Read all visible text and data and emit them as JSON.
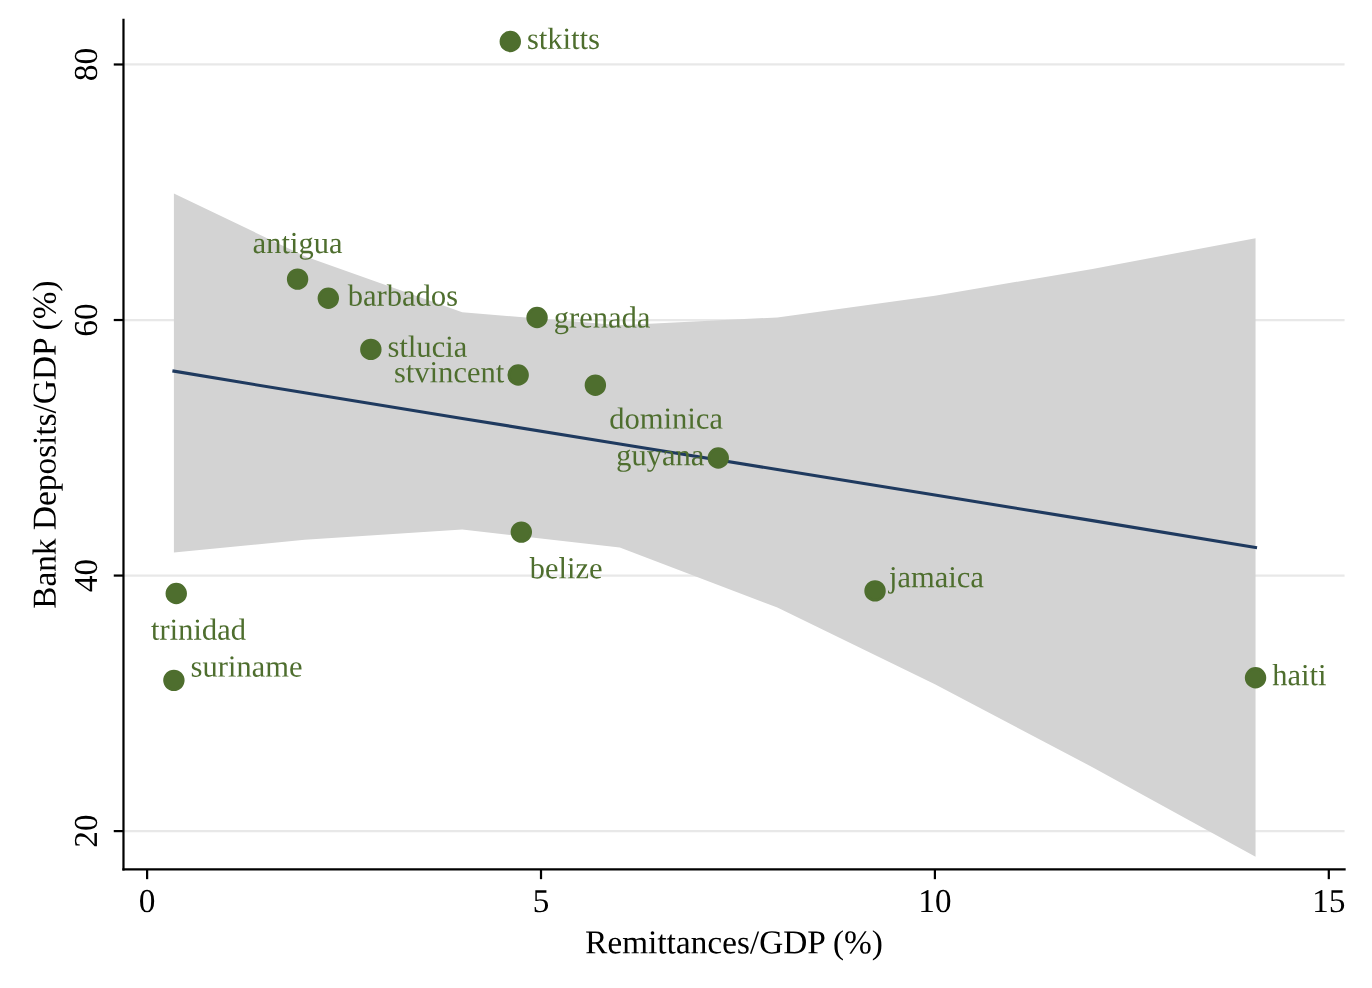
{
  "chart_data": {
    "type": "scatter",
    "xlabel": "Remittances/GDP (%)",
    "ylabel": "Bank Deposits/GDP (%)",
    "xlim": [
      -0.3,
      15.2
    ],
    "ylim": [
      17,
      83.5
    ],
    "xticks": [
      0,
      5,
      10,
      15
    ],
    "yticks": [
      20,
      40,
      60,
      80
    ],
    "grid": "y",
    "legend": false,
    "series": [
      {
        "type": "line",
        "marker": "none",
        "color": "#1f3a5f",
        "x": [
          0.34,
          2,
          4,
          6,
          8,
          10,
          12,
          14.07
        ],
        "values": [
          56.0,
          54.3,
          52.3,
          50.3,
          48.3,
          46.3,
          44.3,
          42.2
        ],
        "lower": [
          41.8,
          42.8,
          43.6,
          42.2,
          37.5,
          31.5,
          25.0,
          18.0
        ],
        "upper": [
          69.9,
          65.0,
          60.6,
          59.6,
          60.2,
          61.9,
          64.0,
          66.4
        ]
      },
      {
        "marker": "circle",
        "color": "#4e6e2e",
        "x": [
          4.61,
          1.91,
          2.3,
          4.95,
          2.84,
          4.71,
          5.69,
          7.25,
          4.75,
          9.24,
          0.37,
          0.34,
          14.07
        ],
        "values": [
          81.8,
          63.2,
          61.7,
          60.2,
          57.7,
          55.7,
          54.9,
          49.2,
          43.4,
          38.8,
          38.6,
          31.8,
          32.0
        ]
      }
    ],
    "annotations": [
      {
        "text": "stkitts",
        "x": 4.61,
        "y": 81.8
      },
      {
        "text": "antigua",
        "x": 1.91,
        "y": 63.2
      },
      {
        "text": "barbados",
        "x": 2.3,
        "y": 61.7
      },
      {
        "text": "grenada",
        "x": 4.95,
        "y": 60.2
      },
      {
        "text": "stlucia",
        "x": 2.84,
        "y": 57.7
      },
      {
        "text": "stvincent",
        "x": 4.71,
        "y": 55.7
      },
      {
        "text": "dominica",
        "x": 5.69,
        "y": 54.9
      },
      {
        "text": "guyana",
        "x": 7.25,
        "y": 49.2
      },
      {
        "text": "belize",
        "x": 4.75,
        "y": 43.4
      },
      {
        "text": "jamaica",
        "x": 9.24,
        "y": 38.8
      },
      {
        "text": "trinidad",
        "x": 0.37,
        "y": 38.6
      },
      {
        "text": "suriname",
        "x": 0.34,
        "y": 31.8
      },
      {
        "text": "haiti",
        "x": 14.07,
        "y": 32.0
      }
    ]
  }
}
